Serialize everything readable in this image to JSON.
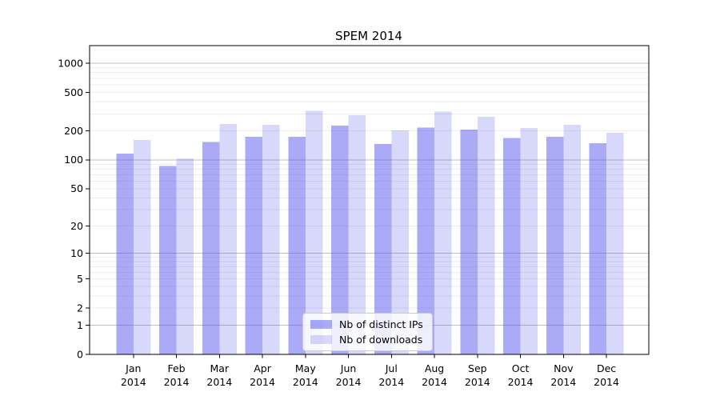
{
  "chart_data": {
    "type": "bar",
    "title": "SPEM 2014",
    "categories": [
      "Jan",
      "Feb",
      "Mar",
      "Apr",
      "May",
      "Jun",
      "Jul",
      "Aug",
      "Sep",
      "Oct",
      "Nov",
      "Dec"
    ],
    "category_year": "2014",
    "series": [
      {
        "name": "Nb of distinct IPs",
        "color": "rgba(85,85,238,0.5)",
        "values": [
          116,
          86,
          153,
          174,
          174,
          226,
          146,
          216,
          206,
          168,
          174,
          149
        ]
      },
      {
        "name": "Nb of downloads",
        "color": "rgba(85,85,238,0.23)",
        "values": [
          161,
          104,
          236,
          231,
          324,
          291,
          203,
          318,
          280,
          214,
          231,
          191
        ]
      }
    ],
    "xlabel": "",
    "ylabel": "",
    "yscale": "log1p",
    "ylim": [
      0,
      1500
    ],
    "yticks": [
      0,
      1,
      2,
      5,
      10,
      20,
      50,
      100,
      200,
      500,
      1000
    ],
    "major_gridlines": [
      1,
      10,
      100,
      1000
    ],
    "grid": true,
    "legend_position": "lower center"
  },
  "colors": {
    "grid_major": "#bfbfbf",
    "grid_minor": "#ececec",
    "spine": "#000000",
    "background": "#ffffff"
  }
}
